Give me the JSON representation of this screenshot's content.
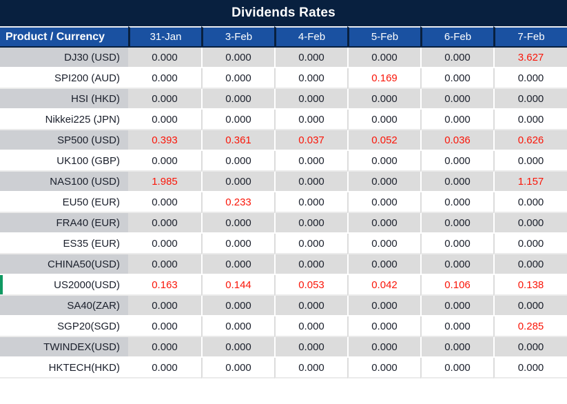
{
  "chart_data": {
    "type": "table",
    "title": "Dividends Rates",
    "columns": [
      "Product / Currency",
      "31-Jan",
      "3-Feb",
      "4-Feb",
      "5-Feb",
      "6-Feb",
      "7-Feb"
    ],
    "rows": [
      {
        "product": "DJ30 (USD)",
        "values": [
          "0.000",
          "0.000",
          "0.000",
          "0.000",
          "0.000",
          "3.627"
        ],
        "red_indices": [
          5
        ]
      },
      {
        "product": "SPI200 (AUD)",
        "values": [
          "0.000",
          "0.000",
          "0.000",
          "0.169",
          "0.000",
          "0.000"
        ],
        "red_indices": [
          3
        ]
      },
      {
        "product": "HSI (HKD)",
        "values": [
          "0.000",
          "0.000",
          "0.000",
          "0.000",
          "0.000",
          "0.000"
        ],
        "red_indices": []
      },
      {
        "product": "Nikkei225 (JPN)",
        "values": [
          "0.000",
          "0.000",
          "0.000",
          "0.000",
          "0.000",
          "0.000"
        ],
        "red_indices": []
      },
      {
        "product": "SP500 (USD)",
        "values": [
          "0.393",
          "0.361",
          "0.037",
          "0.052",
          "0.036",
          "0.626"
        ],
        "red_indices": [
          0,
          1,
          2,
          3,
          4,
          5
        ]
      },
      {
        "product": "UK100 (GBP)",
        "values": [
          "0.000",
          "0.000",
          "0.000",
          "0.000",
          "0.000",
          "0.000"
        ],
        "red_indices": []
      },
      {
        "product": "NAS100 (USD)",
        "values": [
          "1.985",
          "0.000",
          "0.000",
          "0.000",
          "0.000",
          "1.157"
        ],
        "red_indices": [
          0,
          5
        ]
      },
      {
        "product": "EU50 (EUR)",
        "values": [
          "0.000",
          "0.233",
          "0.000",
          "0.000",
          "0.000",
          "0.000"
        ],
        "red_indices": [
          1
        ]
      },
      {
        "product": "FRA40 (EUR)",
        "values": [
          "0.000",
          "0.000",
          "0.000",
          "0.000",
          "0.000",
          "0.000"
        ],
        "red_indices": []
      },
      {
        "product": "ES35 (EUR)",
        "values": [
          "0.000",
          "0.000",
          "0.000",
          "0.000",
          "0.000",
          "0.000"
        ],
        "red_indices": []
      },
      {
        "product": "CHINA50(USD)",
        "values": [
          "0.000",
          "0.000",
          "0.000",
          "0.000",
          "0.000",
          "0.000"
        ],
        "red_indices": []
      },
      {
        "product": "US2000(USD)",
        "values": [
          "0.163",
          "0.144",
          "0.053",
          "0.042",
          "0.106",
          "0.138"
        ],
        "red_indices": [
          0,
          1,
          2,
          3,
          4,
          5
        ]
      },
      {
        "product": "SA40(ZAR)",
        "values": [
          "0.000",
          "0.000",
          "0.000",
          "0.000",
          "0.000",
          "0.000"
        ],
        "red_indices": []
      },
      {
        "product": "SGP20(SGD)",
        "values": [
          "0.000",
          "0.000",
          "0.000",
          "0.000",
          "0.000",
          "0.285"
        ],
        "red_indices": [
          5
        ]
      },
      {
        "product": "TWINDEX(USD)",
        "values": [
          "0.000",
          "0.000",
          "0.000",
          "0.000",
          "0.000",
          "0.000"
        ],
        "red_indices": []
      },
      {
        "product": "HKTECH(HKD)",
        "values": [
          "0.000",
          "0.000",
          "0.000",
          "0.000",
          "0.000",
          "0.000"
        ],
        "red_indices": []
      }
    ],
    "green_marker_row_index": 11,
    "layout": {
      "striped": true,
      "first_data_row_shade": "gray",
      "legend_position": "none",
      "grid": "row-dividers"
    }
  },
  "colors": {
    "title_bar_bg": "#08203F",
    "header_bg": "#1A51A1",
    "header_divider": "#08203F",
    "stripe_data_bg": "#DCDCDC",
    "stripe_label_bg": "#CDCFD3",
    "value_text": "#1A1F2B",
    "highlight_red": "#FA1508",
    "row_marker_green": "#109962"
  }
}
